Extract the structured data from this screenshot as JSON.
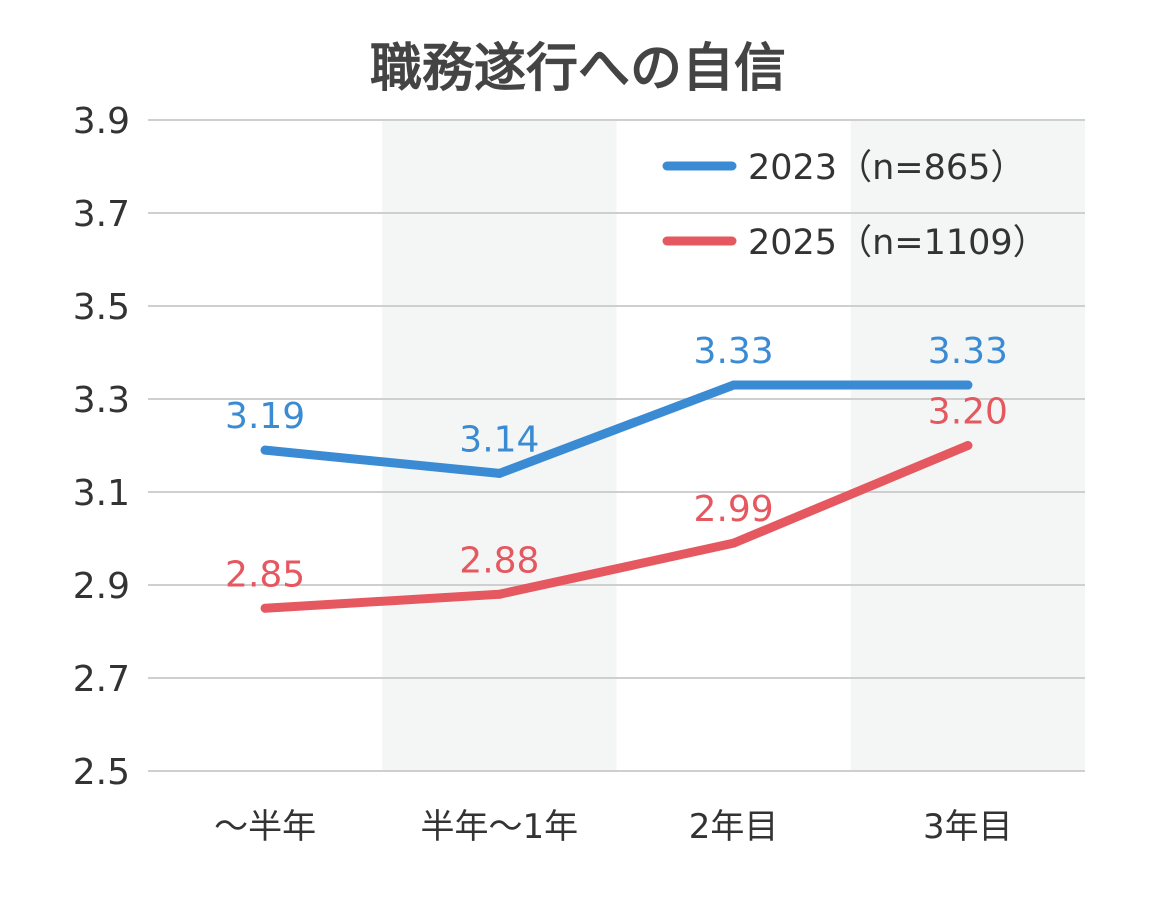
{
  "chart_data": {
    "type": "line",
    "title": "職務遂行への自信",
    "categories": [
      "～半年",
      "半年～1年",
      "2年目",
      "3年目"
    ],
    "ylim": [
      2.5,
      3.9
    ],
    "yticks": [
      "3.9",
      "3.7",
      "3.5",
      "3.3",
      "3.1",
      "2.9",
      "2.7",
      "2.5"
    ],
    "grid": true,
    "legend_position": "top-right",
    "shaded_columns": [
      1,
      3
    ],
    "series": [
      {
        "name": "2023（n=865）",
        "color": "#3a8bd3",
        "values": [
          3.19,
          3.14,
          3.33,
          3.33
        ],
        "labels": [
          "3.19",
          "3.14",
          "3.33",
          "3.33"
        ]
      },
      {
        "name": "2025（n=1109）",
        "color": "#e5585f",
        "values": [
          2.85,
          2.88,
          2.99,
          3.2
        ],
        "labels": [
          "2.85",
          "2.88",
          "2.99",
          "3.20"
        ]
      }
    ]
  }
}
